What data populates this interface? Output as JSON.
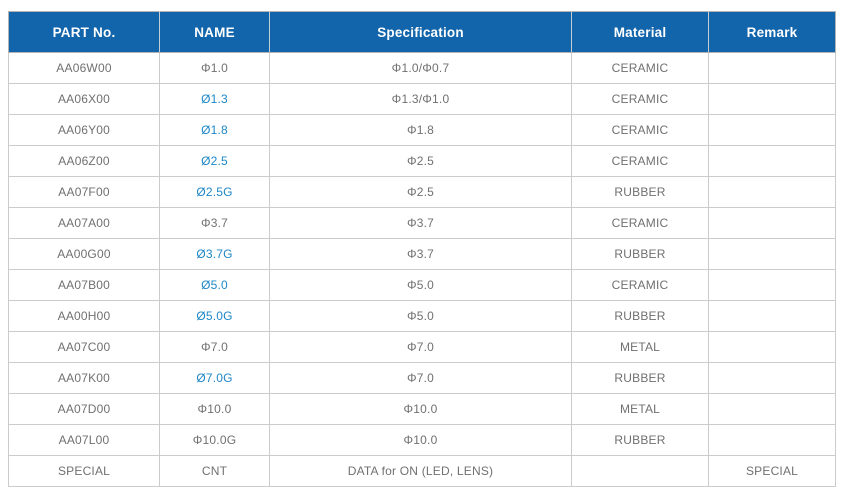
{
  "table": {
    "columns": [
      "PART No.",
      "NAME",
      "Specification",
      "Material",
      "Remark"
    ],
    "rows": [
      {
        "part_no": "AA06W00",
        "name": "Φ1.0",
        "name_color": "gray",
        "spec": "Φ1.0/Φ0.7",
        "material": "CERAMIC",
        "remark": ""
      },
      {
        "part_no": "AA06X00",
        "name": "Ø1.3",
        "name_color": "blue",
        "spec": "Φ1.3/Φ1.0",
        "material": "CERAMIC",
        "remark": ""
      },
      {
        "part_no": "AA06Y00",
        "name": "Ø1.8",
        "name_color": "blue",
        "spec": "Φ1.8",
        "material": "CERAMIC",
        "remark": ""
      },
      {
        "part_no": "AA06Z00",
        "name": "Ø2.5",
        "name_color": "blue",
        "spec": "Φ2.5",
        "material": "CERAMIC",
        "remark": ""
      },
      {
        "part_no": "AA07F00",
        "name": "Ø2.5G",
        "name_color": "blue",
        "spec": "Φ2.5",
        "material": "RUBBER",
        "remark": ""
      },
      {
        "part_no": "AA07A00",
        "name": "Φ3.7",
        "name_color": "gray",
        "spec": "Φ3.7",
        "material": "CERAMIC",
        "remark": ""
      },
      {
        "part_no": "AA00G00",
        "name": "Ø3.7G",
        "name_color": "blue",
        "spec": "Φ3.7",
        "material": "RUBBER",
        "remark": ""
      },
      {
        "part_no": "AA07B00",
        "name": "Ø5.0",
        "name_color": "blue",
        "spec": "Φ5.0",
        "material": "CERAMIC",
        "remark": ""
      },
      {
        "part_no": "AA00H00",
        "name": "Ø5.0G",
        "name_color": "blue",
        "spec": "Φ5.0",
        "material": "RUBBER",
        "remark": ""
      },
      {
        "part_no": "AA07C00",
        "name": "Φ7.0",
        "name_color": "gray",
        "spec": "Φ7.0",
        "material": "METAL",
        "remark": ""
      },
      {
        "part_no": "AA07K00",
        "name": "Ø7.0G",
        "name_color": "blue",
        "spec": "Φ7.0",
        "material": "RUBBER",
        "remark": ""
      },
      {
        "part_no": "AA07D00",
        "name": "Φ10.0",
        "name_color": "gray",
        "spec": "Φ10.0",
        "material": "METAL",
        "remark": ""
      },
      {
        "part_no": "AA07L00",
        "name": "Φ10.0G",
        "name_color": "gray",
        "spec": "Φ10.0",
        "material": "RUBBER",
        "remark": ""
      },
      {
        "part_no": "SPECIAL",
        "name": "CNT",
        "name_color": "gray",
        "spec": "DATA for ON (LED, LENS)",
        "material": "",
        "remark": "SPECIAL"
      }
    ],
    "colors": {
      "header_bg": "#1264ab",
      "header_text": "#ffffff",
      "body_text": "#707070",
      "name_highlight": "#1e87c7",
      "border_inner": "#cccccc",
      "border_outer": "#b3b3b3"
    }
  }
}
